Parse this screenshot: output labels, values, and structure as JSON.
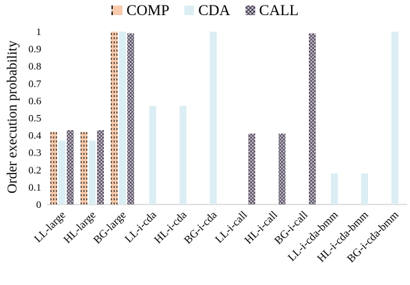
{
  "chart_data": {
    "type": "bar",
    "title": "",
    "xlabel": "",
    "ylabel": "Order execution probability",
    "ylim": [
      0,
      1
    ],
    "yticks": [
      0,
      0.1,
      0.2,
      0.3,
      0.4,
      0.5,
      0.6,
      0.7,
      0.8,
      0.9,
      1
    ],
    "grid": false,
    "legend_position": "top",
    "categories": [
      "LL-large",
      "HL-large",
      "BG-large",
      "LL-i-cda",
      "HL-i-cda",
      "BG-i-cda",
      "LL-i-call",
      "HL-i-call",
      "BG-i-call",
      "LL-i-cda-bmm",
      "HL-i-cda-bmm",
      "BG-i-cda-bmm"
    ],
    "series": [
      {
        "name": "COMP",
        "values": [
          0.42,
          0.42,
          1.0,
          0,
          0,
          0,
          0,
          0,
          0,
          0,
          0,
          0
        ]
      },
      {
        "name": "CDA",
        "values": [
          0.37,
          0.37,
          1.0,
          0.57,
          0.57,
          1.0,
          0,
          0,
          0,
          0.18,
          0.18,
          1.0
        ]
      },
      {
        "name": "CALL",
        "values": [
          0.43,
          0.43,
          0.99,
          0,
          0,
          0,
          0.41,
          0.41,
          0.99,
          0,
          0,
          0
        ]
      }
    ]
  },
  "colors": {
    "COMP": "#f8cbad",
    "CDA": "#dbeef4",
    "CALL": "#ccc0da"
  }
}
